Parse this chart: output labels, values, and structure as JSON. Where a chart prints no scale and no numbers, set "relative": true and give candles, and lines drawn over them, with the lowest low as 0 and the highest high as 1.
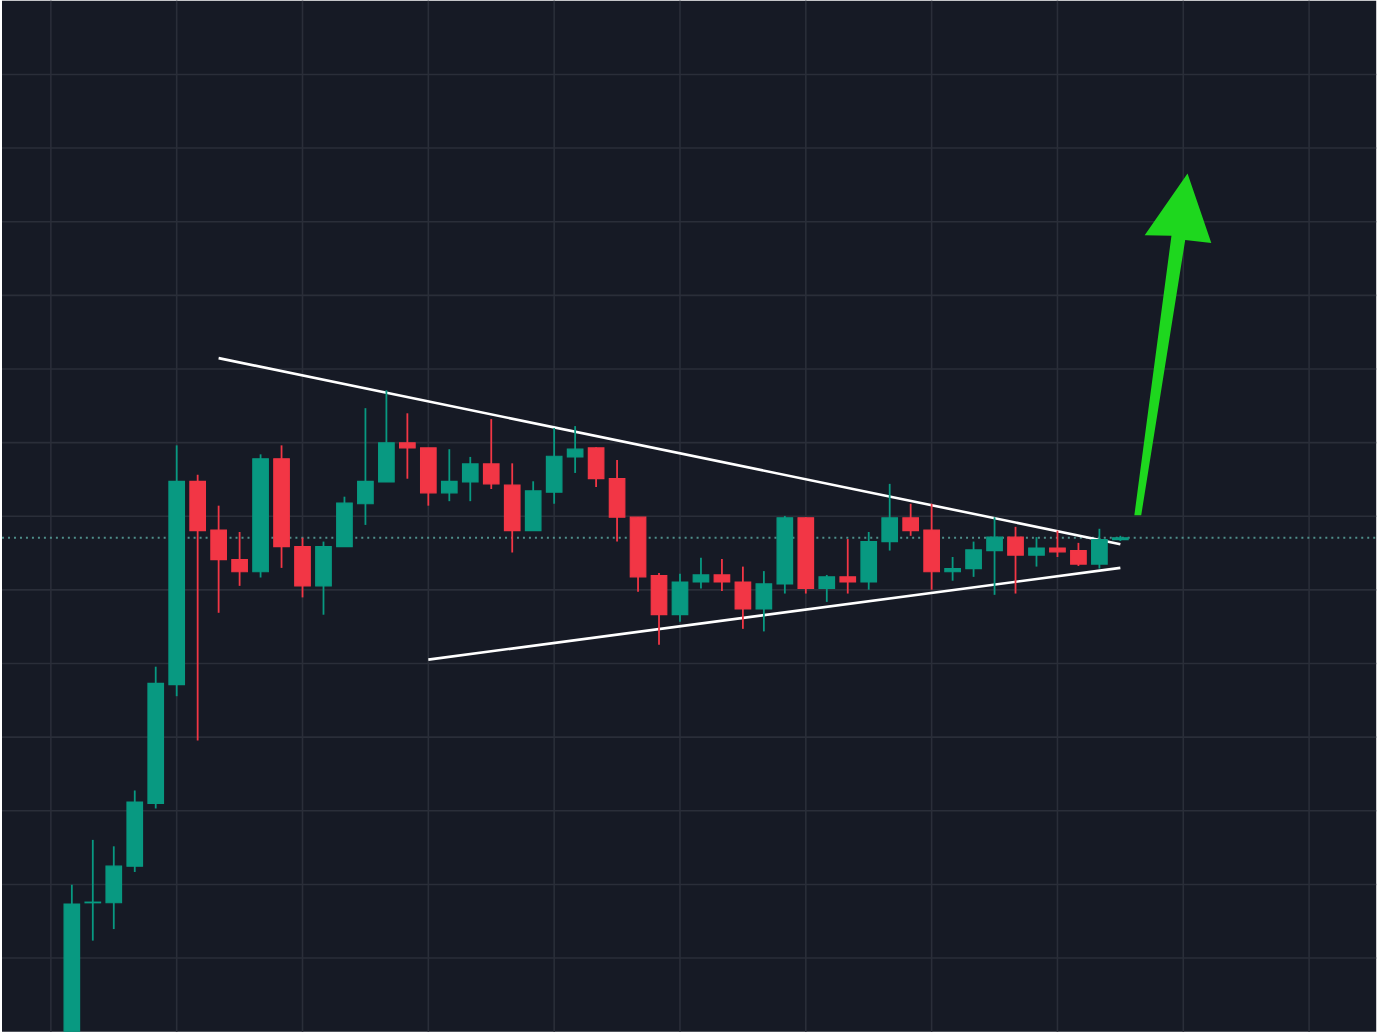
{
  "chart_data": {
    "type": "candlestick",
    "relative": true,
    "grid": true,
    "categories": [
      null,
      null,
      null,
      null,
      null,
      null,
      null,
      null,
      null,
      null,
      null,
      null,
      null,
      null,
      null,
      null,
      null,
      null,
      null,
      null,
      null,
      null,
      null,
      null,
      null,
      null,
      null,
      null,
      null,
      null,
      null,
      null,
      null,
      null,
      null,
      null,
      null,
      null,
      null,
      null,
      null,
      null,
      null,
      null,
      null,
      null,
      null,
      null,
      null,
      null,
      null
    ],
    "ohlc": [
      [
        0,
        0.229,
        0,
        0.199
      ],
      [
        0.201,
        0.299,
        0.142,
        0.202
      ],
      [
        0.201,
        0.289,
        0.16,
        0.258
      ],
      [
        0.258,
        0.376,
        0.249,
        0.358
      ],
      [
        0.356,
        0.569,
        0.348,
        0.543
      ],
      [
        0.541,
        0.914,
        0.523,
        0.858
      ],
      [
        0.858,
        0.868,
        0.454,
        0.781
      ],
      [
        0.782,
        0.82,
        0.653,
        0.736
      ],
      [
        0.736,
        0.779,
        0.695,
        0.717
      ],
      [
        0.717,
        0.9,
        0.708,
        0.893
      ],
      [
        0.893,
        0.914,
        0.723,
        0.756
      ],
      [
        0.756,
        0.77,
        0.677,
        0.695
      ],
      [
        0.695,
        0.764,
        0.65,
        0.756
      ],
      [
        0.756,
        0.834,
        0.756,
        0.824
      ],
      [
        0.823,
        0.972,
        0.79,
        0.858
      ],
      [
        0.857,
        1,
        0.857,
        0.918
      ],
      [
        0.918,
        0.964,
        0.862,
        0.91
      ],
      [
        0.91,
        0.91,
        0.82,
        0.84
      ],
      [
        0.84,
        0.908,
        0.827,
        0.858
      ],
      [
        0.857,
        0.896,
        0.827,
        0.885
      ],
      [
        0.885,
        0.955,
        0.846,
        0.854
      ],
      [
        0.852,
        0.886,
        0.747,
        0.781
      ],
      [
        0.781,
        0.858,
        0.781,
        0.843
      ],
      [
        0.841,
        0.941,
        0.823,
        0.897
      ],
      [
        0.896,
        0.944,
        0.871,
        0.908
      ],
      [
        0.91,
        0.911,
        0.849,
        0.862
      ],
      [
        0.862,
        0.891,
        0.764,
        0.802
      ],
      [
        0.802,
        0.802,
        0.686,
        0.709
      ],
      [
        0.711,
        0.715,
        0.603,
        0.65
      ],
      [
        0.65,
        0.714,
        0.639,
        0.701
      ],
      [
        0.701,
        0.739,
        0.691,
        0.712
      ],
      [
        0.712,
        0.737,
        0.687,
        0.701
      ],
      [
        0.701,
        0.725,
        0.628,
        0.659
      ],
      [
        0.659,
        0.718,
        0.624,
        0.698
      ],
      [
        0.698,
        0.804,
        0.683,
        0.801
      ],
      [
        0.801,
        0.802,
        0.683,
        0.691
      ],
      [
        0.691,
        0.712,
        0.67,
        0.709
      ],
      [
        0.709,
        0.768,
        0.683,
        0.701
      ],
      [
        0.701,
        0.779,
        0.689,
        0.764
      ],
      [
        0.764,
        0.854,
        0.75,
        0.801
      ],
      [
        0.801,
        0.823,
        0.773,
        0.781
      ],
      [
        0.782,
        0.823,
        0.689,
        0.717
      ],
      [
        0.717,
        0.74,
        0.703,
        0.722
      ],
      [
        0.722,
        0.764,
        0.709,
        0.751
      ],
      [
        0.75,
        0.802,
        0.681,
        0.771
      ],
      [
        0.771,
        0.787,
        0.683,
        0.743
      ],
      [
        0.743,
        0.771,
        0.725,
        0.754
      ],
      [
        0.754,
        0.781,
        0.74,
        0.748
      ],
      [
        0.75,
        0.762,
        0.726,
        0.729
      ],
      [
        0.729,
        0.784,
        0.722,
        0.767
      ],
      [
        0.767,
        0.773,
        0.765,
        0.77
      ]
    ],
    "colors": [
      "#089981",
      "#089981",
      "#089981",
      "#089981",
      "#089981",
      "#089981",
      "#f23645",
      "#f23645",
      "#f23645",
      "#089981",
      "#f23645",
      "#f23645",
      "#089981",
      "#089981",
      "#089981",
      "#089981",
      "#f23645",
      "#f23645",
      "#089981",
      "#089981",
      "#f23645",
      "#f23645",
      "#089981",
      "#089981",
      "#089981",
      "#f23645",
      "#f23645",
      "#f23645",
      "#f23645",
      "#089981",
      "#089981",
      "#f23645",
      "#f23645",
      "#089981",
      "#089981",
      "#f23645",
      "#089981",
      "#f23645",
      "#089981",
      "#089981",
      "#f23645",
      "#f23645",
      "#089981",
      "#089981",
      "#089981",
      "#f23645",
      "#089981",
      "#f23645",
      "#f23645",
      "#089981",
      "#089981"
    ],
    "series": [
      {
        "type": "line",
        "color": "#ffffff",
        "values": [
          null,
          null,
          null,
          null,
          null,
          null,
          null,
          1.05,
          null,
          null,
          null,
          null,
          null,
          null,
          null,
          null,
          null,
          null,
          null,
          null,
          null,
          null,
          null,
          null,
          null,
          null,
          null,
          null,
          null,
          null,
          null,
          null,
          null,
          null,
          null,
          null,
          null,
          null,
          null,
          null,
          null,
          null,
          null,
          null,
          null,
          null,
          null,
          null,
          null,
          null,
          0.76
        ]
      },
      {
        "type": "line",
        "color": "#ffffff",
        "values": [
          null,
          null,
          null,
          null,
          null,
          null,
          null,
          null,
          null,
          null,
          null,
          null,
          null,
          null,
          null,
          null,
          null,
          0.58,
          null,
          null,
          null,
          null,
          null,
          null,
          null,
          null,
          null,
          null,
          null,
          null,
          null,
          null,
          null,
          null,
          null,
          null,
          null,
          null,
          null,
          null,
          null,
          null,
          null,
          null,
          null,
          null,
          null,
          null,
          null,
          null,
          0.723
        ]
      }
    ],
    "ref_lines": [
      {
        "axis": "y",
        "value": 0.77,
        "color": "#4f8f8a",
        "line_style": "dotted"
      }
    ]
  }
}
